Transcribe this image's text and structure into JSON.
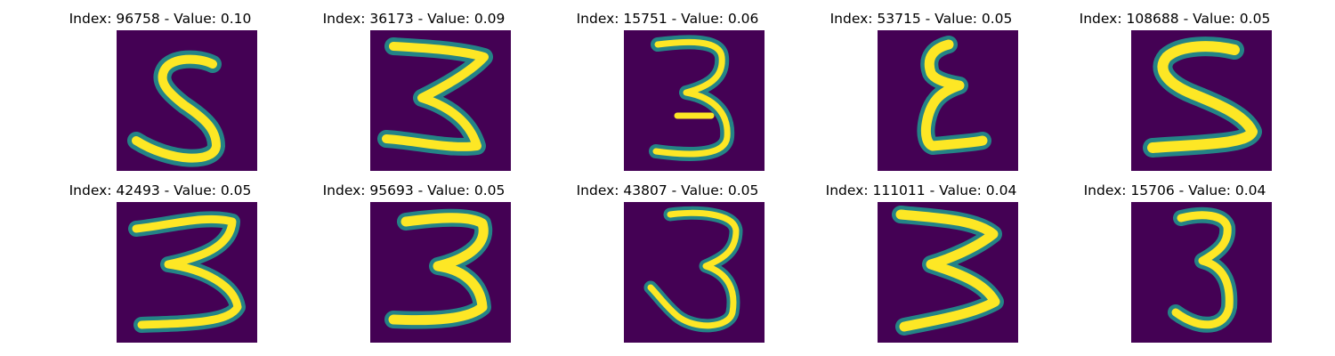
{
  "colors": {
    "background": "#440154",
    "stroke_edge": "#21918c",
    "stroke_core": "#fde725"
  },
  "panels": [
    {
      "title": "Index: 96758 - Value: 0.10",
      "digit": "5"
    },
    {
      "title": "Index: 36173 - Value: 0.09",
      "digit": "3"
    },
    {
      "title": "Index: 15751 - Value: 0.06",
      "digit": "3"
    },
    {
      "title": "Index: 53715 - Value: 0.05",
      "digit": "3"
    },
    {
      "title": "Index: 108688 - Value: 0.05",
      "digit": "5"
    },
    {
      "title": "Index: 42493 - Value: 0.05",
      "digit": "3"
    },
    {
      "title": "Index: 95693 - Value: 0.05",
      "digit": "3"
    },
    {
      "title": "Index: 43807 - Value: 0.05",
      "digit": "3"
    },
    {
      "title": "Index: 111011 - Value: 0.04",
      "digit": "3"
    },
    {
      "title": "Index: 15706 - Value: 0.04",
      "digit": "3"
    }
  ]
}
